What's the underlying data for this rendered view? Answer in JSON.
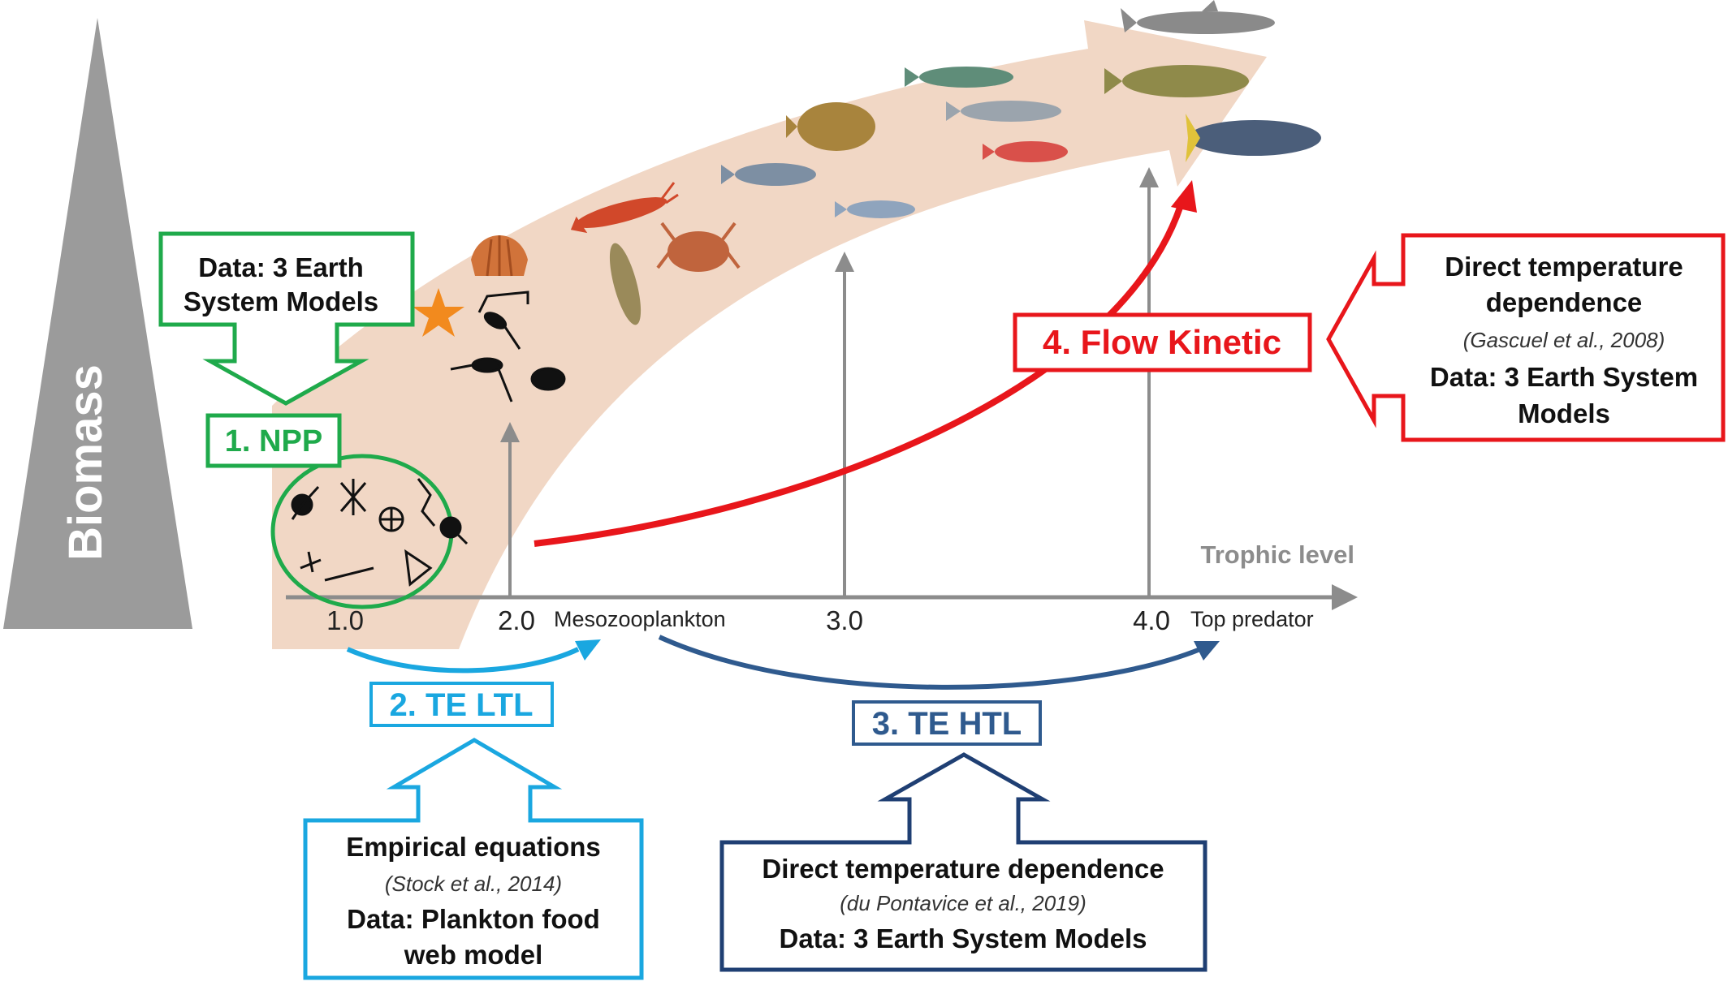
{
  "biomass_label": "Biomass",
  "axis": {
    "label": "Trophic level",
    "ticks": [
      "1.0",
      "2.0",
      "3.0",
      "4.0"
    ],
    "mesozooplankton": "Mesozooplankton",
    "top_predator": "Top predator"
  },
  "steps": {
    "npp": "1. NPP",
    "te_ltl": "2. TE LTL",
    "te_htl": "3. TE HTL",
    "flow_kinetic": "4. Flow Kinetic"
  },
  "boxes": {
    "npp_source": {
      "line1": "Data: 3 Earth",
      "line2": "System Models"
    },
    "ltl_source": {
      "line1": "Empirical equations",
      "citation": "(Stock et al., 2014)",
      "line2": "Data: Plankton food",
      "line3": "web model"
    },
    "htl_source": {
      "line1": "Direct temperature dependence",
      "citation": "(du Pontavice et al., 2019)",
      "line2": "Data: 3 Earth System Models"
    },
    "flow_source": {
      "line1": "Direct temperature",
      "line2": "dependence",
      "citation": "(Gascuel et al., 2008)",
      "line3": "Data: 3 Earth System",
      "line4": "Models"
    }
  },
  "colors": {
    "green": "#1faa4b",
    "light_blue": "#1aa7e0",
    "dark_blue": "#2f5a8e",
    "red": "#e8161b",
    "gray": "#8c8c8c",
    "band": "#f1d7c5"
  }
}
